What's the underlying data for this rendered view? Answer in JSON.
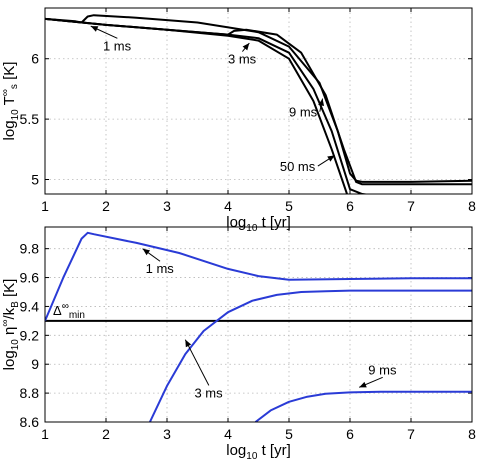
{
  "chart_data": [
    {
      "type": "line",
      "ylabel_parts": {
        "base": "log",
        "base_sub": "10",
        "sym": " T",
        "sym_sup": "∞",
        "sym_sub": "s",
        "unit": " [K]"
      },
      "xlabel_parts": {
        "base": "log",
        "base_sub": "10",
        "rest": " t [yr]"
      },
      "xlim": [
        1,
        8
      ],
      "ylim": [
        4.88,
        6.42
      ],
      "xticks": [
        "1",
        "2",
        "3",
        "4",
        "5",
        "6",
        "7",
        "8"
      ],
      "xtick_values": [
        1,
        2,
        3,
        4,
        5,
        6,
        7,
        8
      ],
      "yticks": [
        "5",
        "5.5",
        "6"
      ],
      "ytick_values": [
        5,
        5.5,
        6
      ],
      "grid": true,
      "series": [
        {
          "name": "1 ms",
          "color": "#000000",
          "x": [
            1,
            1.5,
            1.6,
            1.7,
            1.8,
            2.5,
            3.5,
            4.5,
            5.0,
            5.5,
            5.8,
            6.0,
            6.1,
            6.2,
            6.5,
            7.0,
            8.0
          ],
          "y": [
            6.33,
            6.31,
            6.3,
            6.35,
            6.36,
            6.34,
            6.3,
            6.22,
            6.1,
            5.8,
            5.4,
            5.05,
            4.99,
            4.98,
            4.98,
            4.98,
            4.99
          ]
        },
        {
          "name": "3 ms",
          "color": "#000000",
          "x": [
            1,
            2,
            3,
            4.0,
            4.1,
            4.3,
            4.8,
            5.2,
            5.6,
            5.9,
            6.1,
            6.2,
            6.5,
            7.0,
            8.0
          ],
          "y": [
            6.33,
            6.28,
            6.24,
            6.2,
            6.23,
            6.24,
            6.2,
            6.05,
            5.7,
            5.25,
            4.98,
            4.96,
            4.96,
            4.96,
            4.96
          ]
        },
        {
          "name": "9 ms",
          "color": "#000000",
          "x": [
            1,
            2,
            3,
            4,
            4.5,
            5.0,
            5.4,
            5.7,
            6.0,
            6.2,
            6.5,
            7.0,
            8.0
          ],
          "y": [
            6.33,
            6.28,
            6.24,
            6.2,
            6.17,
            6.05,
            5.75,
            5.4,
            4.92,
            4.88,
            4.86,
            4.86,
            4.86
          ]
        },
        {
          "name": "50 ms",
          "color": "#000000",
          "x": [
            1,
            2,
            3,
            4,
            4.5,
            5.0,
            5.4,
            5.7,
            5.95,
            6.1,
            6.5,
            7.0,
            8.0
          ],
          "y": [
            6.33,
            6.28,
            6.24,
            6.19,
            6.15,
            6.0,
            5.65,
            5.25,
            4.88,
            4.8,
            4.78,
            4.78,
            4.78
          ]
        }
      ],
      "annotations": [
        {
          "text": "1 ms",
          "x": 1.95,
          "y": 6.07,
          "arrow_to": [
            1.75,
            6.27
          ]
        },
        {
          "text": "3 ms",
          "x": 4.0,
          "y": 5.96,
          "arrow_to": [
            4.35,
            6.13
          ]
        },
        {
          "text": "9 ms",
          "x": 5.0,
          "y": 5.52,
          "arrow_to": [
            5.55,
            5.67
          ]
        },
        {
          "text": "50 ms",
          "x": 4.85,
          "y": 5.07,
          "arrow_to": [
            5.75,
            5.2
          ]
        }
      ]
    },
    {
      "type": "line",
      "ylabel_parts": {
        "base": "log",
        "base_sub": "10",
        "sym": " η",
        "sym_sup": "∞",
        "mid": "/k",
        "mid_sub": "B",
        "unit": " [K]"
      },
      "xlabel_parts": {
        "base": "log",
        "base_sub": "10",
        "rest": " t [yr]"
      },
      "xlim": [
        1,
        8
      ],
      "ylim": [
        8.6,
        9.95
      ],
      "xticks": [
        "1",
        "2",
        "3",
        "4",
        "5",
        "6",
        "7",
        "8"
      ],
      "xtick_values": [
        1,
        2,
        3,
        4,
        5,
        6,
        7,
        8
      ],
      "yticks": [
        "8.6",
        "8.8",
        "9",
        "9.2",
        "9.4",
        "9.6",
        "9.8"
      ],
      "ytick_values": [
        8.6,
        8.8,
        9.0,
        9.2,
        9.4,
        9.6,
        9.8
      ],
      "grid": true,
      "series": [
        {
          "name": "1 ms",
          "color": "#2a3bd6",
          "x": [
            1,
            1.3,
            1.6,
            1.7,
            1.8,
            2.5,
            3.2,
            4.0,
            4.5,
            5.0,
            6.0,
            7.0,
            8.0
          ],
          "y": [
            9.3,
            9.6,
            9.87,
            9.91,
            9.9,
            9.84,
            9.77,
            9.66,
            9.61,
            9.585,
            9.59,
            9.595,
            9.595
          ]
        },
        {
          "name": "3 ms",
          "color": "#2a3bd6",
          "x": [
            2.72,
            3.0,
            3.3,
            3.6,
            4.0,
            4.4,
            4.8,
            5.2,
            5.6,
            6.0,
            7.0,
            8.0
          ],
          "y": [
            8.6,
            8.85,
            9.07,
            9.23,
            9.36,
            9.44,
            9.48,
            9.5,
            9.505,
            9.51,
            9.51,
            9.51
          ]
        },
        {
          "name": "9 ms",
          "color": "#2a3bd6",
          "x": [
            4.45,
            4.7,
            5.0,
            5.3,
            5.6,
            6.0,
            6.5,
            7.0,
            8.0
          ],
          "y": [
            8.6,
            8.68,
            8.74,
            8.775,
            8.795,
            8.805,
            8.81,
            8.81,
            8.81
          ]
        }
      ],
      "reference_line": {
        "y": 9.3,
        "color": "#000000",
        "label_base": "Δ",
        "label_sup": "∞",
        "label_sub": "min"
      },
      "annotations": [
        {
          "text": "1 ms",
          "x": 2.65,
          "y": 9.63,
          "arrow_to": [
            2.6,
            9.8
          ]
        },
        {
          "text": "3 ms",
          "x": 3.45,
          "y": 8.77,
          "arrow_to": [
            3.3,
            9.17
          ]
        },
        {
          "text": "9 ms",
          "x": 6.3,
          "y": 8.93,
          "arrow_to": [
            6.15,
            8.84
          ]
        }
      ]
    }
  ]
}
